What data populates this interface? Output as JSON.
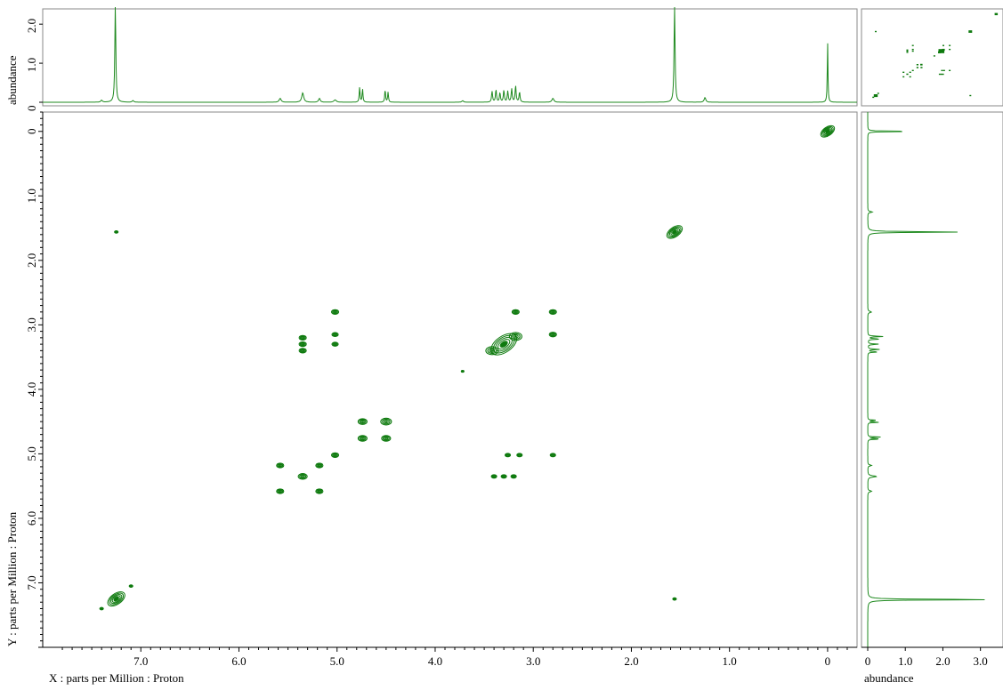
{
  "colors": {
    "trace": "#1f8a1f",
    "contour": "#0e7a0e",
    "frame": "#8a8a8a"
  },
  "chart_data": {
    "type": "heatmap",
    "subtype": "2D NMR contour plot (H-H COSY) with 1D projections",
    "xlabel": "X : parts per Million : Proton",
    "ylabel": "Y : parts per Million : Proton",
    "x_axis": {
      "reversed": true,
      "range": [
        8.0,
        -0.3
      ],
      "ticks": [
        7.0,
        6.0,
        5.0,
        4.0,
        3.0,
        2.0,
        1.0,
        0
      ],
      "tick_labels": [
        "7.0",
        "6.0",
        "5.0",
        "4.0",
        "3.0",
        "2.0",
        "1.0",
        "0"
      ]
    },
    "y_axis": {
      "range": [
        -0.3,
        8.0
      ],
      "ticks": [
        0,
        1.0,
        2.0,
        3.0,
        4.0,
        5.0,
        6.0,
        7.0
      ],
      "tick_labels": [
        "0",
        "1.0",
        "2.0",
        "3.0",
        "4.0",
        "5.0",
        "6.0",
        "7.0"
      ]
    },
    "top_projection": {
      "ylabel": "abundance",
      "range": [
        0,
        2.3
      ],
      "ticks": [
        0,
        1.0,
        2.0
      ],
      "tick_labels": [
        "0",
        "1.0",
        "2.0"
      ],
      "peaks": [
        {
          "ppm": 7.26,
          "height": 2.5,
          "width": 0.006
        },
        {
          "ppm": 7.4,
          "height": 0.05,
          "width": 0.01
        },
        {
          "ppm": 7.08,
          "height": 0.04,
          "width": 0.01
        },
        {
          "ppm": 5.58,
          "height": 0.1,
          "width": 0.012
        },
        {
          "ppm": 5.35,
          "height": 0.24,
          "width": 0.012
        },
        {
          "ppm": 5.18,
          "height": 0.1,
          "width": 0.01
        },
        {
          "ppm": 5.02,
          "height": 0.06,
          "width": 0.015
        },
        {
          "ppm": 4.77,
          "height": 0.38,
          "width": 0.005
        },
        {
          "ppm": 4.74,
          "height": 0.34,
          "width": 0.005
        },
        {
          "ppm": 4.51,
          "height": 0.32,
          "width": 0.005
        },
        {
          "ppm": 4.48,
          "height": 0.26,
          "width": 0.005
        },
        {
          "ppm": 3.72,
          "height": 0.04,
          "width": 0.01
        },
        {
          "ppm": 3.42,
          "height": 0.28,
          "width": 0.006
        },
        {
          "ppm": 3.38,
          "height": 0.32,
          "width": 0.006
        },
        {
          "ppm": 3.34,
          "height": 0.24,
          "width": 0.006
        },
        {
          "ppm": 3.3,
          "height": 0.3,
          "width": 0.006
        },
        {
          "ppm": 3.26,
          "height": 0.28,
          "width": 0.006
        },
        {
          "ppm": 3.22,
          "height": 0.34,
          "width": 0.006
        },
        {
          "ppm": 3.18,
          "height": 0.42,
          "width": 0.006
        },
        {
          "ppm": 3.14,
          "height": 0.26,
          "width": 0.006
        },
        {
          "ppm": 2.8,
          "height": 0.1,
          "width": 0.012
        },
        {
          "ppm": 1.56,
          "height": 2.5,
          "width": 0.006
        },
        {
          "ppm": 1.25,
          "height": 0.12,
          "width": 0.01
        },
        {
          "ppm": 0.0,
          "height": 1.55,
          "width": 0.004
        }
      ]
    },
    "right_projection": {
      "xlabel": "abundance",
      "range": [
        0,
        3.6
      ],
      "ticks": [
        0,
        1.0,
        2.0,
        3.0
      ],
      "tick_labels": [
        "0",
        "1.0",
        "2.0",
        "3.0"
      ],
      "peaks": [
        {
          "ppm": 0.0,
          "height": 1.55,
          "width": 0.004
        },
        {
          "ppm": 1.25,
          "height": 0.12,
          "width": 0.01
        },
        {
          "ppm": 1.56,
          "height": 2.5,
          "width": 0.006
        },
        {
          "ppm": 2.8,
          "height": 0.1,
          "width": 0.012
        },
        {
          "ppm": 3.18,
          "height": 0.42,
          "width": 0.006
        },
        {
          "ppm": 3.22,
          "height": 0.34,
          "width": 0.006
        },
        {
          "ppm": 3.3,
          "height": 0.3,
          "width": 0.006
        },
        {
          "ppm": 3.38,
          "height": 0.32,
          "width": 0.006
        },
        {
          "ppm": 3.42,
          "height": 0.28,
          "width": 0.006
        },
        {
          "ppm": 4.48,
          "height": 0.26,
          "width": 0.005
        },
        {
          "ppm": 4.51,
          "height": 0.32,
          "width": 0.005
        },
        {
          "ppm": 4.74,
          "height": 0.34,
          "width": 0.005
        },
        {
          "ppm": 4.77,
          "height": 0.38,
          "width": 0.005
        },
        {
          "ppm": 5.18,
          "height": 0.1,
          "width": 0.01
        },
        {
          "ppm": 5.35,
          "height": 0.24,
          "width": 0.012
        },
        {
          "ppm": 5.58,
          "height": 0.1,
          "width": 0.012
        },
        {
          "ppm": 7.26,
          "height": 3.6,
          "width": 0.006
        }
      ]
    },
    "cross_peaks": [
      {
        "x": 0.0,
        "y": 0.0,
        "size": 1.6,
        "diag": true
      },
      {
        "x": 1.56,
        "y": 1.56,
        "size": 1.8,
        "diag": true
      },
      {
        "x": 7.25,
        "y": 1.56,
        "size": 0.4
      },
      {
        "x": 1.56,
        "y": 7.25,
        "size": 0.4
      },
      {
        "x": 5.02,
        "y": 2.8,
        "size": 0.8
      },
      {
        "x": 2.8,
        "y": 2.8,
        "size": 0.8
      },
      {
        "x": 3.18,
        "y": 2.8,
        "size": 0.8
      },
      {
        "x": 5.35,
        "y": 3.2,
        "size": 0.8
      },
      {
        "x": 5.35,
        "y": 3.3,
        "size": 0.8
      },
      {
        "x": 5.35,
        "y": 3.4,
        "size": 0.8
      },
      {
        "x": 5.02,
        "y": 3.15,
        "size": 0.7
      },
      {
        "x": 5.02,
        "y": 3.3,
        "size": 0.7
      },
      {
        "x": 3.3,
        "y": 3.3,
        "size": 3.0,
        "diag": true
      },
      {
        "x": 3.42,
        "y": 3.4,
        "size": 1.4
      },
      {
        "x": 3.18,
        "y": 3.18,
        "size": 1.4
      },
      {
        "x": 2.8,
        "y": 3.15,
        "size": 0.8
      },
      {
        "x": 3.72,
        "y": 3.72,
        "size": 0.3
      },
      {
        "x": 4.74,
        "y": 4.5,
        "size": 1.0
      },
      {
        "x": 4.5,
        "y": 4.5,
        "size": 1.2
      },
      {
        "x": 4.74,
        "y": 4.76,
        "size": 1.0
      },
      {
        "x": 4.5,
        "y": 4.76,
        "size": 1.0
      },
      {
        "x": 5.02,
        "y": 5.02,
        "size": 0.8
      },
      {
        "x": 5.58,
        "y": 5.18,
        "size": 0.8
      },
      {
        "x": 5.18,
        "y": 5.18,
        "size": 0.8
      },
      {
        "x": 5.35,
        "y": 5.35,
        "size": 1.0
      },
      {
        "x": 5.58,
        "y": 5.58,
        "size": 0.8
      },
      {
        "x": 5.18,
        "y": 5.58,
        "size": 0.8
      },
      {
        "x": 3.26,
        "y": 5.02,
        "size": 0.6
      },
      {
        "x": 3.14,
        "y": 5.02,
        "size": 0.6
      },
      {
        "x": 2.8,
        "y": 5.02,
        "size": 0.6
      },
      {
        "x": 3.4,
        "y": 5.35,
        "size": 0.6
      },
      {
        "x": 3.3,
        "y": 5.35,
        "size": 0.6
      },
      {
        "x": 3.2,
        "y": 5.35,
        "size": 0.6
      },
      {
        "x": 7.25,
        "y": 7.25,
        "size": 2.0,
        "diag": true
      },
      {
        "x": 7.1,
        "y": 7.05,
        "size": 0.4
      },
      {
        "x": 7.4,
        "y": 7.4,
        "size": 0.4
      }
    ]
  }
}
